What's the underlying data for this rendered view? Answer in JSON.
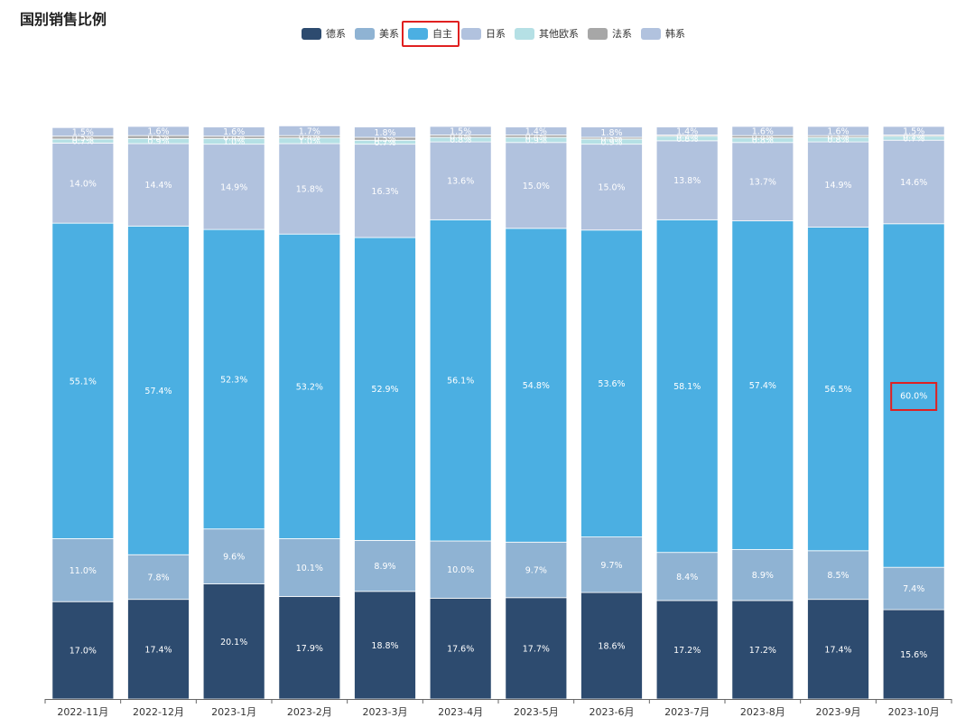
{
  "title": "国别销售比例",
  "legend": [
    {
      "name": "德系",
      "color": "#2d4b6f"
    },
    {
      "name": "美系",
      "color": "#8fb3d3"
    },
    {
      "name": "自主",
      "color": "#4bafe2"
    },
    {
      "name": "日系",
      "color": "#b1c2de"
    },
    {
      "name": "其他欧系",
      "color": "#b5e0e5"
    },
    {
      "name": "法系",
      "color": "#a7a7a7"
    },
    {
      "name": "韩系",
      "color": "#b1c2de"
    }
  ],
  "highlighted_legend": "自主",
  "highlighted_label": {
    "series": "自主",
    "category": "2023-10月"
  },
  "chart_data": {
    "type": "bar",
    "stacked": true,
    "title": "国别销售比例",
    "xlabel": "",
    "ylabel": "",
    "ylim": [
      0,
      100
    ],
    "categories": [
      "2022-11月",
      "2022-12月",
      "2023-1月",
      "2023-2月",
      "2023-3月",
      "2023-4月",
      "2023-5月",
      "2023-6月",
      "2023-7月",
      "2023-8月",
      "2023-9月",
      "2023-10月"
    ],
    "series": [
      {
        "name": "德系",
        "color": "#2d4b6f",
        "values": [
          17.0,
          17.4,
          20.1,
          17.9,
          18.8,
          17.6,
          17.7,
          18.6,
          17.2,
          17.2,
          17.4,
          15.6
        ]
      },
      {
        "name": "美系",
        "color": "#8fb3d3",
        "values": [
          11.0,
          7.8,
          9.6,
          10.1,
          8.9,
          10.0,
          9.7,
          9.7,
          8.4,
          8.9,
          8.5,
          7.4
        ]
      },
      {
        "name": "自主",
        "color": "#4bafe2",
        "values": [
          55.1,
          57.4,
          52.3,
          53.2,
          52.9,
          56.1,
          54.8,
          53.6,
          58.1,
          57.4,
          56.5,
          60.0
        ]
      },
      {
        "name": "日系",
        "color": "#b1c2de",
        "values": [
          14.0,
          14.4,
          14.9,
          15.8,
          16.3,
          13.6,
          15.0,
          15.0,
          13.8,
          13.7,
          14.9,
          14.6
        ]
      },
      {
        "name": "其他欧系",
        "color": "#b5e0e5",
        "values": [
          0.7,
          0.9,
          1.0,
          1.0,
          0.7,
          0.8,
          0.9,
          0.9,
          0.8,
          0.8,
          0.8,
          0.7
        ]
      },
      {
        "name": "法系",
        "color": "#a7a7a7",
        "values": [
          0.5,
          0.5,
          0.4,
          0.4,
          0.5,
          0.4,
          0.4,
          0.3,
          0.2,
          0.4,
          0.3,
          0.2
        ]
      },
      {
        "name": "韩系",
        "color": "#b1c2de",
        "values": [
          1.5,
          1.6,
          1.6,
          1.7,
          1.8,
          1.5,
          1.4,
          1.8,
          1.4,
          1.6,
          1.6,
          1.5
        ]
      }
    ]
  }
}
